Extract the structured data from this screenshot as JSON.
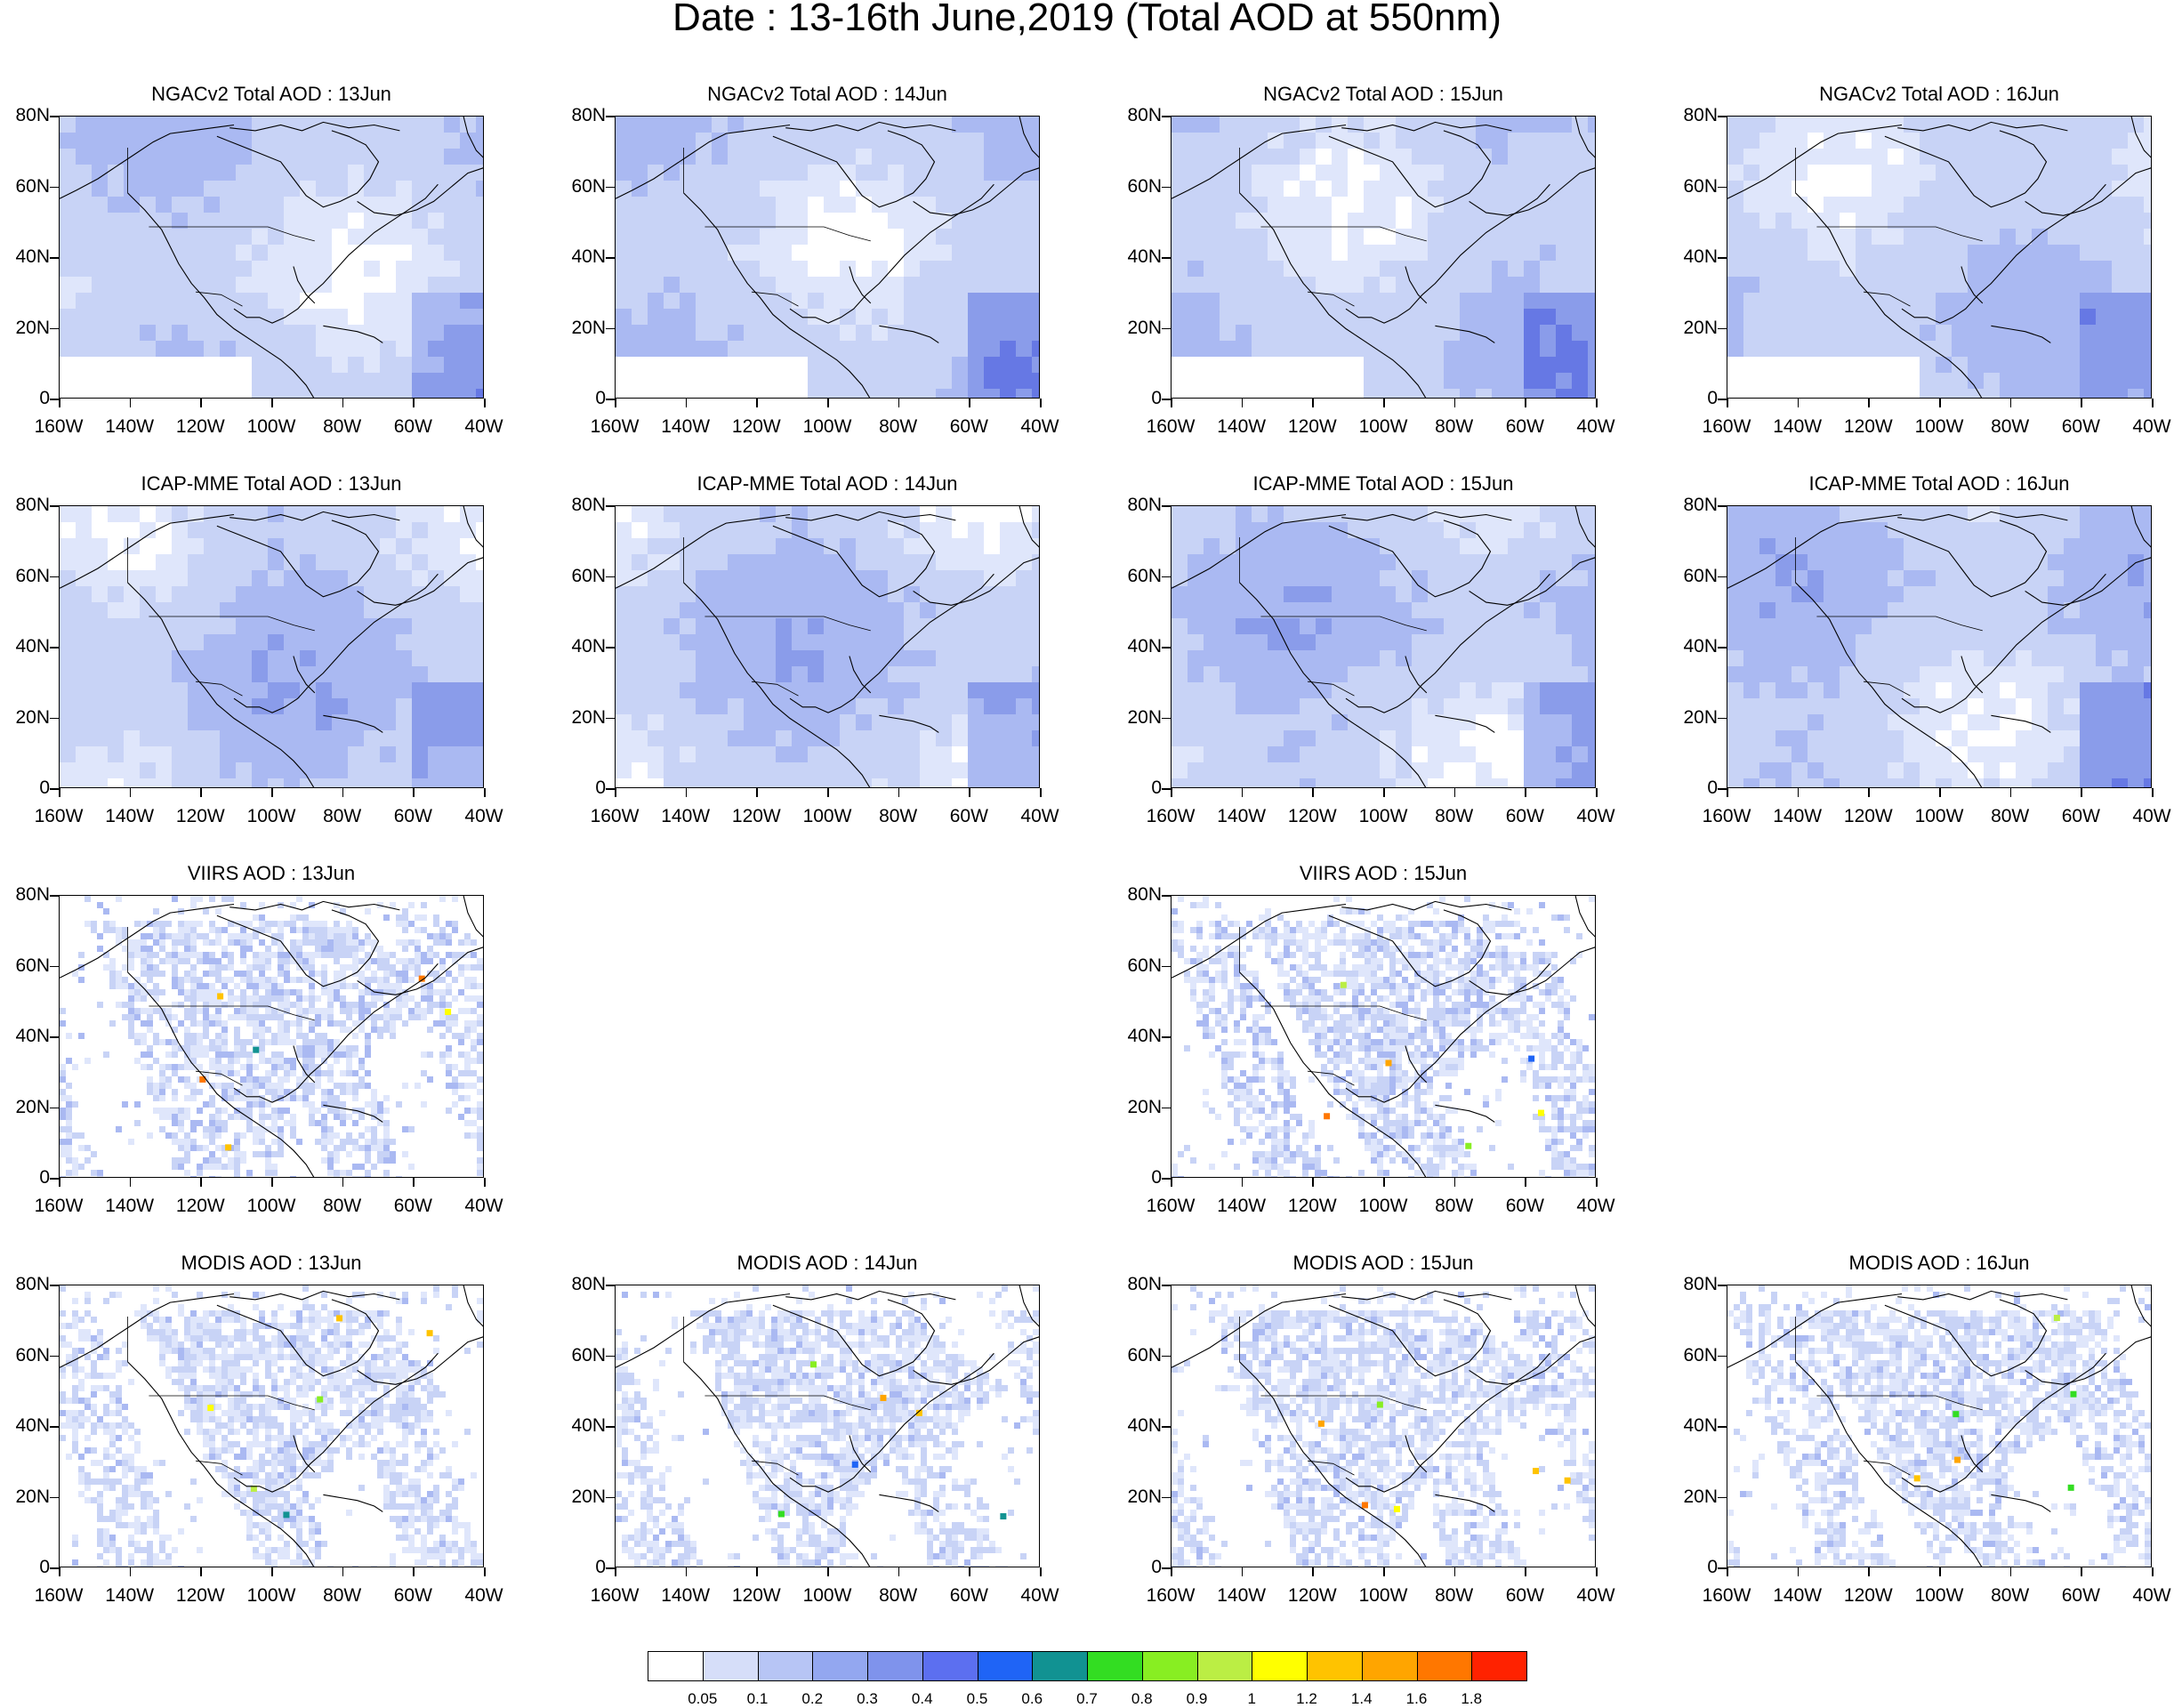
{
  "title": "Date : 13-16th June,2019 (Total AOD at 550nm)",
  "y_tick_labels": [
    "80N",
    "60N",
    "40N",
    "20N",
    "0"
  ],
  "x_tick_labels": [
    "160W",
    "140W",
    "120W",
    "100W",
    "80W",
    "60W",
    "40W"
  ],
  "colors": {
    "ocean_low": "#dfe6fb",
    "land_low": "#c8d3f6",
    "mid": "#aab9f2",
    "high": "#8a9cea",
    "peak": "#6678e4",
    "coast": "#000000"
  },
  "legend": {
    "colors": [
      "#ffffff",
      "#d6def9",
      "#b7c5f5",
      "#93a7f0",
      "#7f93ec",
      "#5c6ff0",
      "#1f64f6",
      "#119292",
      "#33dd22",
      "#88ee22",
      "#bbee44",
      "#ffff00",
      "#ffc300",
      "#ffa500",
      "#ff7700",
      "#ff2200"
    ],
    "labels": [
      "0.05",
      "0.1",
      "0.2",
      "0.3",
      "0.4",
      "0.5",
      "0.6",
      "0.7",
      "0.8",
      "0.9",
      "1",
      "1.2",
      "1.4",
      "1.6",
      "1.8"
    ]
  },
  "panels": [
    {
      "title": "NGACv2 Total AOD : 13Jun",
      "kind": "model",
      "tint": 1.0
    },
    {
      "title": "NGACv2 Total AOD : 14Jun",
      "kind": "model",
      "tint": 1.0
    },
    {
      "title": "NGACv2 Total AOD : 15Jun",
      "kind": "model",
      "tint": 1.0
    },
    {
      "title": "NGACv2 Total AOD : 16Jun",
      "kind": "model",
      "tint": 1.0
    },
    {
      "title": "ICAP-MME Total AOD : 13Jun",
      "kind": "model",
      "tint": 1.2
    },
    {
      "title": "ICAP-MME Total AOD : 14Jun",
      "kind": "model",
      "tint": 1.2
    },
    {
      "title": "ICAP-MME Total AOD : 15Jun",
      "kind": "model",
      "tint": 1.2
    },
    {
      "title": "ICAP-MME Total AOD : 16Jun",
      "kind": "model",
      "tint": 1.2
    },
    {
      "title": "VIIRS AOD : 13Jun",
      "kind": "sat",
      "tint": 1.0
    },
    {
      "title": "VIIRS AOD : 15Jun",
      "kind": "sat",
      "tint": 1.0
    },
    {
      "title": "MODIS AOD : 13Jun",
      "kind": "sat",
      "tint": 0.9
    },
    {
      "title": "MODIS AOD : 14Jun",
      "kind": "sat",
      "tint": 0.9
    },
    {
      "title": "MODIS AOD : 15Jun",
      "kind": "sat",
      "tint": 0.9
    },
    {
      "title": "MODIS AOD : 16Jun",
      "kind": "sat",
      "tint": 0.9
    }
  ]
}
